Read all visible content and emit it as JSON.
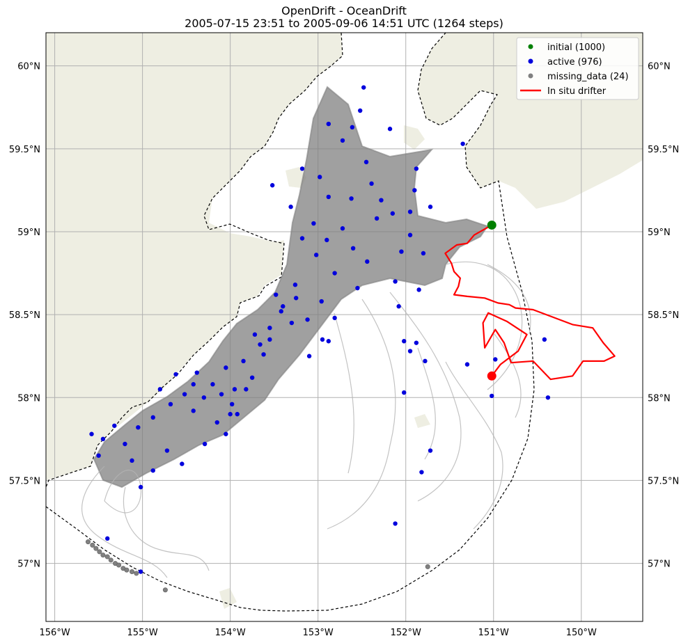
{
  "chart_data": {
    "type": "scatter",
    "title": "OpenDrift - OceanDrift",
    "subtitle": "2005-07-15 23:51 to 2005-09-06 14:51 UTC (1264 steps)",
    "xlim": [
      -156.1,
      -149.3
    ],
    "ylim": [
      56.65,
      60.2
    ],
    "x_ticks": [
      {
        "value": -156,
        "label": "156°W"
      },
      {
        "value": -155,
        "label": "155°W"
      },
      {
        "value": -154,
        "label": "154°W"
      },
      {
        "value": -153,
        "label": "153°W"
      },
      {
        "value": -152,
        "label": "152°W"
      },
      {
        "value": -151,
        "label": "151°W"
      },
      {
        "value": -150,
        "label": "150°W"
      }
    ],
    "y_ticks": [
      {
        "value": 57,
        "label": "57°N"
      },
      {
        "value": 57.5,
        "label": "57.5°N"
      },
      {
        "value": 58,
        "label": "58°N"
      },
      {
        "value": 58.5,
        "label": "58.5°N"
      },
      {
        "value": 59,
        "label": "59°N"
      },
      {
        "value": 59.5,
        "label": "59.5°N"
      },
      {
        "value": 60,
        "label": "60°N"
      }
    ],
    "grid": true,
    "legend_position": "top-right",
    "colors": {
      "land": "#eeeee2",
      "trajectory": "#808080",
      "initial": "#008000",
      "active": "#0000dd",
      "missing_data": "#808080",
      "drifter": "#ff0000"
    },
    "legend": [
      {
        "label": "initial (1000)",
        "color": "#008000",
        "kind": "point"
      },
      {
        "label": "active (976)",
        "color": "#0000dd",
        "kind": "point"
      },
      {
        "label": "missing_data (24)",
        "color": "#808080",
        "kind": "point"
      },
      {
        "label": "In situ drifter",
        "color": "#ff0000",
        "kind": "line"
      }
    ],
    "series": [
      {
        "name": "initial (1000)",
        "points": [
          [
            -151.02,
            59.04
          ]
        ]
      },
      {
        "name": "active (976)",
        "points": [
          [
            -152.48,
            59.87
          ],
          [
            -152.88,
            59.65
          ],
          [
            -152.52,
            59.73
          ],
          [
            -152.18,
            59.62
          ],
          [
            -152.61,
            59.63
          ],
          [
            -152.72,
            59.55
          ],
          [
            -153.18,
            59.38
          ],
          [
            -152.98,
            59.33
          ],
          [
            -152.45,
            59.42
          ],
          [
            -151.88,
            59.38
          ],
          [
            -153.52,
            59.28
          ],
          [
            -153.31,
            59.15
          ],
          [
            -152.88,
            59.21
          ],
          [
            -152.39,
            59.29
          ],
          [
            -151.9,
            59.25
          ],
          [
            -152.15,
            59.11
          ],
          [
            -151.72,
            59.15
          ],
          [
            -153.05,
            59.05
          ],
          [
            -153.18,
            58.96
          ],
          [
            -152.72,
            59.02
          ],
          [
            -152.33,
            59.08
          ],
          [
            -151.95,
            58.98
          ],
          [
            -153.02,
            58.86
          ],
          [
            -152.81,
            58.75
          ],
          [
            -152.44,
            58.82
          ],
          [
            -152.05,
            58.88
          ],
          [
            -151.8,
            58.87
          ],
          [
            -153.26,
            58.68
          ],
          [
            -153.48,
            58.62
          ],
          [
            -152.96,
            58.58
          ],
          [
            -152.55,
            58.66
          ],
          [
            -152.12,
            58.7
          ],
          [
            -151.85,
            58.65
          ],
          [
            -153.3,
            58.45
          ],
          [
            -153.55,
            58.42
          ],
          [
            -153.72,
            58.38
          ],
          [
            -153.12,
            58.47
          ],
          [
            -152.81,
            58.48
          ],
          [
            -152.88,
            58.34
          ],
          [
            -153.62,
            58.26
          ],
          [
            -153.85,
            58.22
          ],
          [
            -154.05,
            58.18
          ],
          [
            -153.95,
            58.05
          ],
          [
            -154.2,
            58.08
          ],
          [
            -154.38,
            58.15
          ],
          [
            -153.75,
            58.12
          ],
          [
            -154.52,
            58.02
          ],
          [
            -154.68,
            57.96
          ],
          [
            -154.88,
            57.88
          ],
          [
            -154.42,
            57.92
          ],
          [
            -154.15,
            57.85
          ],
          [
            -154.05,
            57.78
          ],
          [
            -155.05,
            57.82
          ],
          [
            -155.2,
            57.72
          ],
          [
            -155.45,
            57.75
          ],
          [
            -155.12,
            57.62
          ],
          [
            -154.72,
            57.68
          ],
          [
            -154.55,
            57.6
          ],
          [
            -154.88,
            57.56
          ],
          [
            -155.02,
            57.46
          ],
          [
            -153.92,
            57.9
          ],
          [
            -154.29,
            57.72
          ],
          [
            -155.58,
            57.78
          ],
          [
            -155.5,
            57.65
          ],
          [
            -155.4,
            57.15
          ],
          [
            -155.02,
            56.95
          ],
          [
            -154.62,
            58.14
          ],
          [
            -154.42,
            58.08
          ],
          [
            -155.32,
            57.83
          ],
          [
            -154.8,
            58.05
          ],
          [
            -153.98,
            57.96
          ],
          [
            -152.08,
            58.55
          ],
          [
            -152.02,
            58.34
          ],
          [
            -151.88,
            58.33
          ],
          [
            -151.95,
            58.28
          ],
          [
            -151.78,
            58.22
          ],
          [
            -151.3,
            58.2
          ],
          [
            -150.98,
            58.23
          ],
          [
            -150.42,
            58.35
          ],
          [
            -150.38,
            58.0
          ],
          [
            -151.02,
            58.01
          ],
          [
            -152.02,
            58.03
          ],
          [
            -151.72,
            57.68
          ],
          [
            -151.82,
            57.55
          ],
          [
            -152.12,
            57.24
          ],
          [
            -151.35,
            59.53
          ],
          [
            -152.28,
            59.19
          ],
          [
            -151.95,
            59.12
          ],
          [
            -152.6,
            58.9
          ],
          [
            -153.1,
            58.25
          ],
          [
            -152.95,
            58.35
          ],
          [
            -153.42,
            58.52
          ],
          [
            -153.66,
            58.32
          ],
          [
            -154.3,
            58.0
          ],
          [
            -154.0,
            57.9
          ],
          [
            -154.1,
            58.02
          ],
          [
            -153.82,
            58.05
          ],
          [
            -153.55,
            58.35
          ],
          [
            -153.4,
            58.55
          ],
          [
            -153.25,
            58.6
          ],
          [
            -152.9,
            58.95
          ],
          [
            -152.62,
            59.2
          ]
        ]
      },
      {
        "name": "missing_data (24)",
        "points": [
          [
            -155.62,
            57.13
          ],
          [
            -155.57,
            57.11
          ],
          [
            -155.53,
            57.09
          ],
          [
            -155.49,
            57.07
          ],
          [
            -155.45,
            57.05
          ],
          [
            -155.4,
            57.04
          ],
          [
            -155.36,
            57.02
          ],
          [
            -155.31,
            57.0
          ],
          [
            -155.27,
            56.99
          ],
          [
            -155.22,
            56.97
          ],
          [
            -155.18,
            56.96
          ],
          [
            -155.12,
            56.95
          ],
          [
            -155.07,
            56.94
          ],
          [
            -154.74,
            56.84
          ],
          [
            -151.75,
            56.98
          ]
        ]
      },
      {
        "name": "In situ drifter",
        "points": [
          [
            -151.02,
            59.04
          ],
          [
            -151.12,
            59.01
          ],
          [
            -151.22,
            58.98
          ],
          [
            -151.3,
            58.93
          ],
          [
            -151.42,
            58.92
          ],
          [
            -151.55,
            58.87
          ],
          [
            -151.48,
            58.81
          ],
          [
            -151.45,
            58.76
          ],
          [
            -151.38,
            58.72
          ],
          [
            -151.4,
            58.67
          ],
          [
            -151.45,
            58.62
          ],
          [
            -151.3,
            58.61
          ],
          [
            -151.1,
            58.6
          ],
          [
            -150.95,
            58.57
          ],
          [
            -150.82,
            58.56
          ],
          [
            -150.75,
            58.54
          ],
          [
            -150.55,
            58.53
          ],
          [
            -150.35,
            58.49
          ],
          [
            -150.1,
            58.44
          ],
          [
            -149.87,
            58.42
          ],
          [
            -149.75,
            58.33
          ],
          [
            -149.62,
            58.25
          ],
          [
            -149.74,
            58.22
          ],
          [
            -149.98,
            58.22
          ],
          [
            -150.1,
            58.13
          ],
          [
            -150.35,
            58.11
          ],
          [
            -150.55,
            58.22
          ],
          [
            -150.8,
            58.21
          ],
          [
            -150.88,
            58.33
          ],
          [
            -150.98,
            58.41
          ],
          [
            -151.1,
            58.3
          ],
          [
            -151.12,
            58.45
          ],
          [
            -151.06,
            58.51
          ],
          [
            -150.85,
            58.46
          ],
          [
            -150.62,
            58.38
          ],
          [
            -150.72,
            58.28
          ],
          [
            -150.92,
            58.2
          ],
          [
            -151.02,
            58.13
          ]
        ]
      }
    ]
  }
}
